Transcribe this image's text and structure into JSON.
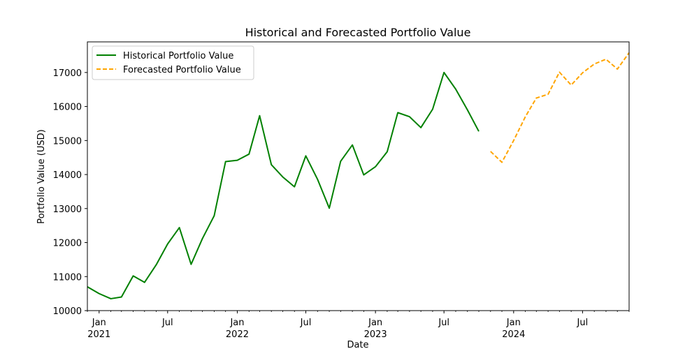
{
  "chart_data": {
    "type": "line",
    "title": "Historical and Forecasted Portfolio Value",
    "xlabel": "Date",
    "ylabel": "Portfolio Value (USD)",
    "ylim": [
      10000,
      17900
    ],
    "xlim": [
      "2020-12-01",
      "2024-11-01"
    ],
    "y_ticks": [
      10000,
      11000,
      12000,
      13000,
      14000,
      15000,
      16000,
      17000
    ],
    "x_ticks": [
      {
        "date": "2021-01-01",
        "label": "Jan",
        "sublabel": "2021"
      },
      {
        "date": "2021-07-01",
        "label": "Jul",
        "sublabel": ""
      },
      {
        "date": "2022-01-01",
        "label": "Jan",
        "sublabel": "2022"
      },
      {
        "date": "2022-07-01",
        "label": "Jul",
        "sublabel": ""
      },
      {
        "date": "2023-01-01",
        "label": "Jan",
        "sublabel": "2023"
      },
      {
        "date": "2023-07-01",
        "label": "Jul",
        "sublabel": ""
      },
      {
        "date": "2024-01-01",
        "label": "Jan",
        "sublabel": "2024"
      },
      {
        "date": "2024-07-01",
        "label": "Jul",
        "sublabel": ""
      }
    ],
    "grid": false,
    "legend_position": "top-left",
    "series": [
      {
        "name": "Historical Portfolio Value",
        "color": "#008000",
        "linestyle": "solid",
        "points": [
          [
            "2020-12-01",
            10700
          ],
          [
            "2021-01-01",
            10500
          ],
          [
            "2021-02-01",
            10350
          ],
          [
            "2021-03-01",
            10400
          ],
          [
            "2021-04-01",
            11020
          ],
          [
            "2021-05-01",
            10830
          ],
          [
            "2021-06-01",
            11350
          ],
          [
            "2021-07-01",
            11960
          ],
          [
            "2021-08-01",
            12440
          ],
          [
            "2021-09-01",
            11360
          ],
          [
            "2021-10-01",
            12120
          ],
          [
            "2021-11-01",
            12790
          ],
          [
            "2021-12-01",
            14380
          ],
          [
            "2022-01-01",
            14420
          ],
          [
            "2022-02-01",
            14600
          ],
          [
            "2022-03-01",
            15730
          ],
          [
            "2022-04-01",
            14290
          ],
          [
            "2022-05-01",
            13930
          ],
          [
            "2022-06-01",
            13640
          ],
          [
            "2022-07-01",
            14550
          ],
          [
            "2022-08-01",
            13860
          ],
          [
            "2022-09-01",
            13010
          ],
          [
            "2022-10-01",
            14390
          ],
          [
            "2022-11-01",
            14870
          ],
          [
            "2022-12-01",
            13990
          ],
          [
            "2023-01-01",
            14230
          ],
          [
            "2023-02-01",
            14670
          ],
          [
            "2023-03-01",
            15820
          ],
          [
            "2023-04-01",
            15700
          ],
          [
            "2023-05-01",
            15380
          ],
          [
            "2023-06-01",
            15920
          ],
          [
            "2023-07-01",
            17000
          ],
          [
            "2023-08-01",
            16510
          ],
          [
            "2023-09-01",
            15900
          ],
          [
            "2023-10-01",
            15270
          ]
        ]
      },
      {
        "name": "Forecasted Portfolio Value",
        "color": "#FFA500",
        "linestyle": "dashed",
        "points": [
          [
            "2023-11-01",
            14680
          ],
          [
            "2023-12-01",
            14360
          ],
          [
            "2024-01-01",
            15000
          ],
          [
            "2024-02-01",
            15700
          ],
          [
            "2024-03-01",
            16250
          ],
          [
            "2024-04-01",
            16360
          ],
          [
            "2024-05-01",
            17010
          ],
          [
            "2024-06-01",
            16630
          ],
          [
            "2024-07-01",
            16990
          ],
          [
            "2024-08-01",
            17250
          ],
          [
            "2024-09-01",
            17390
          ],
          [
            "2024-10-01",
            17100
          ],
          [
            "2024-11-01",
            17580
          ]
        ]
      }
    ]
  }
}
